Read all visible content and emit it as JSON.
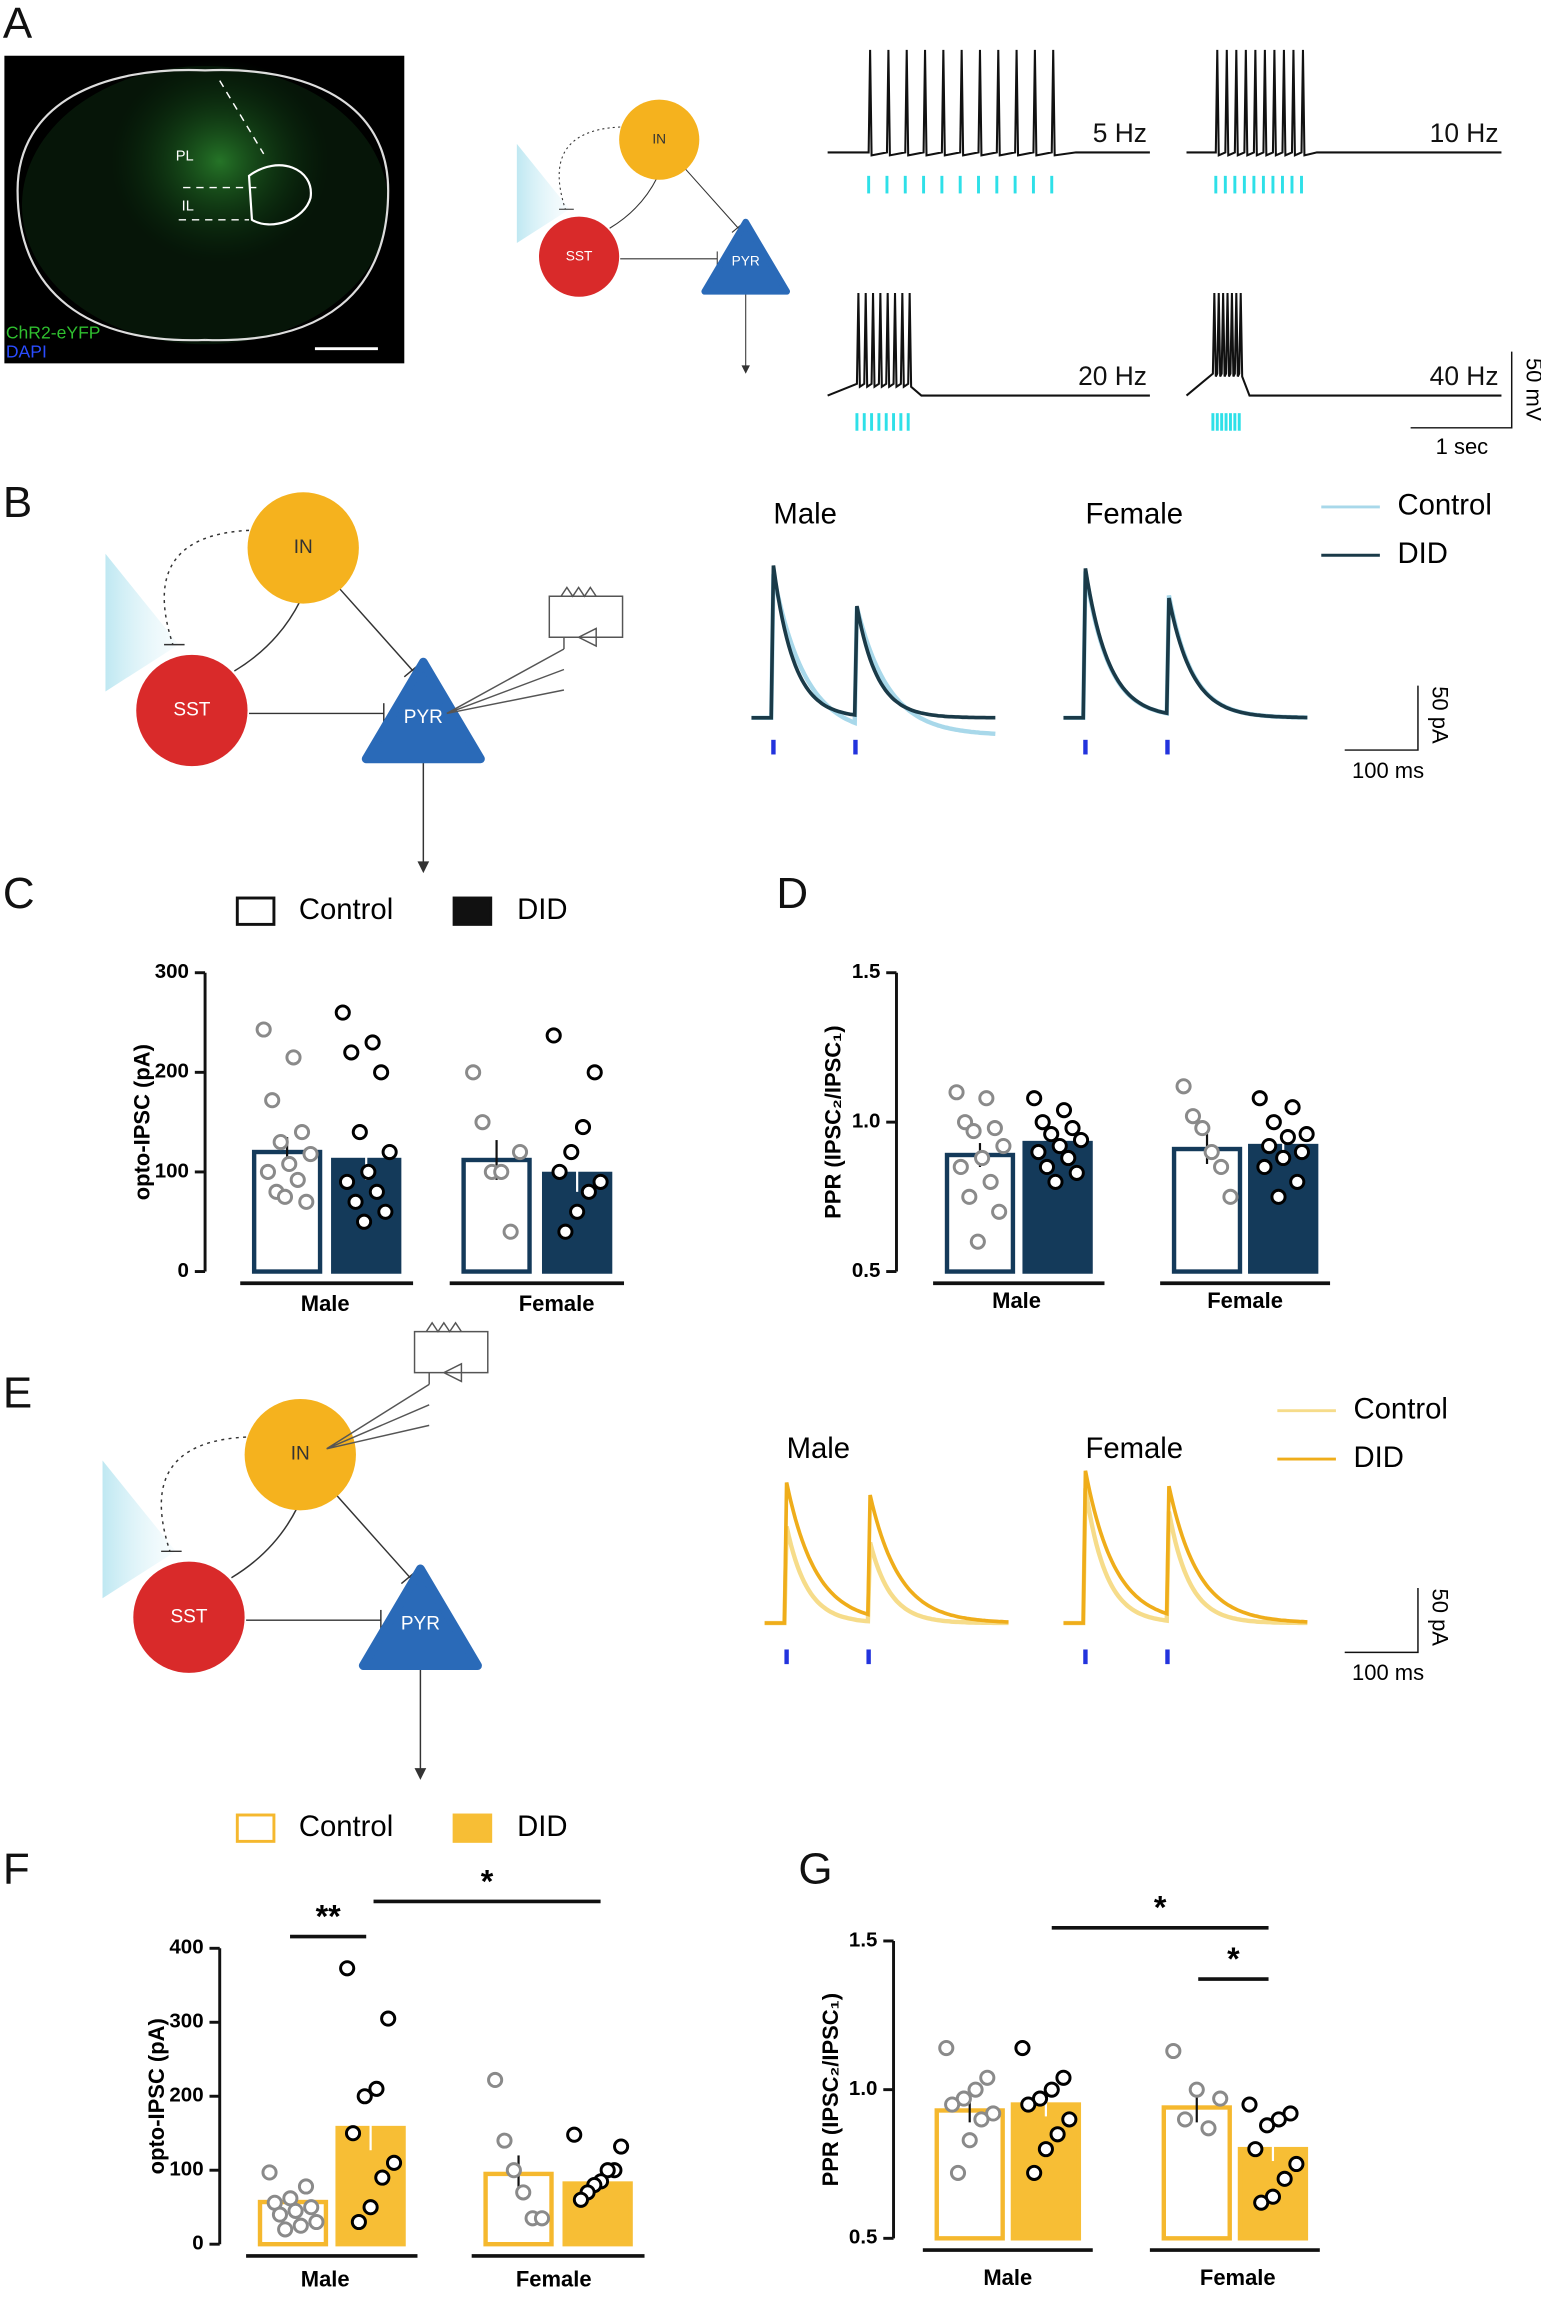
{
  "panel_labels": [
    "A",
    "B",
    "C",
    "D",
    "E",
    "F",
    "G"
  ],
  "panel_a": {
    "image_labels": [
      "PL",
      "IL"
    ],
    "stain_labels": [
      "ChR2-eYFP",
      "DAPI"
    ],
    "frequencies": [
      "5 Hz",
      "10 Hz",
      "20 Hz",
      "40 Hz"
    ],
    "scale_v": "50 mV",
    "scale_t": "1 sec"
  },
  "cells": {
    "in": "IN",
    "sst": "SST",
    "pyr": "PYR"
  },
  "traces_b": {
    "groups": [
      "Male",
      "Female"
    ],
    "legend": [
      "Control",
      "DID"
    ],
    "scale_i": "50 pA",
    "scale_t": "100 ms"
  },
  "traces_e": {
    "groups": [
      "Male",
      "Female"
    ],
    "legend": [
      "Control",
      "DID"
    ],
    "scale_i": "50 pA",
    "scale_t": "100 ms"
  },
  "chart_data": [
    {
      "type": "bar",
      "ylabel": "opto-IPSC (pA)",
      "categories": [
        "Male",
        "Female"
      ],
      "ylim": [
        0,
        300
      ],
      "yticks": [
        0,
        100,
        200,
        300
      ],
      "series": [
        {
          "name": "Control",
          "color": "#143a5a",
          "fill": "#ffffff",
          "point_color": "#8a8a8a",
          "values": [
            120,
            112
          ],
          "errors": [
            15,
            20
          ],
          "points": [
            [
              243,
              215,
              172,
              140,
              130,
              118,
              108,
              100,
              92,
              80,
              70,
              75
            ],
            [
              200,
              150,
              100,
              100,
              40,
              120
            ]
          ]
        },
        {
          "name": "DID",
          "color": "#143a5a",
          "fill": "#143a5a",
          "point_color": "#000000",
          "values": [
            112,
            98
          ],
          "errors": [
            20,
            18
          ],
          "points": [
            [
              260,
              230,
              220,
              200,
              140,
              120,
              100,
              90,
              80,
              70,
              60,
              50
            ],
            [
              237,
              200,
              145,
              120,
              100,
              90,
              80,
              60,
              40
            ]
          ]
        }
      ]
    },
    {
      "type": "bar",
      "ylabel": "PPR  (IPSC₂/IPSC₁)",
      "categories": [
        "Male",
        "Female"
      ],
      "ylim": [
        0.5,
        1.5
      ],
      "yticks": [
        0.5,
        {
          "value": 1,
          "label": "1.0"
        },
        1.5
      ],
      "series": [
        {
          "name": "Control",
          "color": "#143a5a",
          "fill": "#ffffff",
          "point_color": "#8a8a8a",
          "values": [
            0.89,
            0.91
          ],
          "errors": [
            0.04,
            0.05
          ],
          "points": [
            [
              1.1,
              1.08,
              1.0,
              0.98,
              0.97,
              0.92,
              0.88,
              0.85,
              0.8,
              0.75,
              0.7,
              0.6
            ],
            [
              1.12,
              1.02,
              0.98,
              0.9,
              0.85,
              0.75
            ]
          ]
        },
        {
          "name": "DID",
          "color": "#143a5a",
          "fill": "#143a5a",
          "point_color": "#000000",
          "values": [
            0.93,
            0.92
          ],
          "errors": [
            0.02,
            0.03
          ],
          "points": [
            [
              1.08,
              1.04,
              1.0,
              0.98,
              0.96,
              0.94,
              0.92,
              0.9,
              0.88,
              0.85,
              0.83,
              0.8
            ],
            [
              1.08,
              1.05,
              1.0,
              0.96,
              0.95,
              0.92,
              0.9,
              0.88,
              0.85,
              0.8,
              0.75
            ]
          ]
        }
      ]
    },
    {
      "type": "bar",
      "ylabel": "opto-IPSC (pA)",
      "categories": [
        "Male",
        "Female"
      ],
      "ylim": [
        0,
        400
      ],
      "yticks": [
        0,
        100,
        200,
        300,
        400
      ],
      "annotations": [
        {
          "text": "**"
        },
        {
          "text": "*"
        }
      ],
      "series": [
        {
          "name": "Control",
          "color": "#f5b82e",
          "fill": "#ffffff",
          "point_color": "#8a8a8a",
          "values": [
            57,
            95
          ],
          "errors": [
            10,
            25
          ],
          "points": [
            [
              97,
              78,
              62,
              56,
              50,
              45,
              40,
              30,
              25,
              20
            ],
            [
              222,
              140,
              100,
              70,
              35,
              35
            ]
          ]
        },
        {
          "name": "DID",
          "color": "#f7be35",
          "fill": "#f7be35",
          "point_color": "#000000",
          "values": [
            157,
            82
          ],
          "errors": [
            30,
            10
          ],
          "points": [
            [
              373,
              305,
              210,
              200,
              150,
              110,
              90,
              50,
              30
            ],
            [
              148,
              132,
              100,
              100,
              85,
              80,
              70,
              60
            ]
          ]
        }
      ]
    },
    {
      "type": "bar",
      "ylabel": "PPR  (IPSC₂/IPSC₁)",
      "categories": [
        "Male",
        "Female"
      ],
      "ylim": [
        0.5,
        1.5
      ],
      "yticks": [
        0.5,
        {
          "value": 1,
          "label": "1.0"
        },
        1.5
      ],
      "annotations": [
        {
          "text": "*"
        },
        {
          "text": "*"
        }
      ],
      "series": [
        {
          "name": "Control",
          "color": "#f5b82e",
          "fill": "#ffffff",
          "point_color": "#8a8a8a",
          "values": [
            0.93,
            0.94
          ],
          "errors": [
            0.04,
            0.05
          ],
          "points": [
            [
              1.14,
              1.04,
              1.0,
              0.97,
              0.95,
              0.92,
              0.9,
              0.83,
              0.72
            ],
            [
              1.13,
              1.0,
              0.97,
              0.9,
              0.87
            ]
          ]
        },
        {
          "name": "DID",
          "color": "#f7be35",
          "fill": "#f7be35",
          "point_color": "#000000",
          "values": [
            0.95,
            0.8
          ],
          "errors": [
            0.04,
            0.04
          ],
          "points": [
            [
              1.14,
              1.04,
              1.0,
              0.97,
              0.95,
              0.9,
              0.85,
              0.8,
              0.72
            ],
            [
              0.95,
              0.92,
              0.9,
              0.88,
              0.8,
              0.75,
              0.7,
              0.64,
              0.62
            ]
          ]
        }
      ]
    }
  ]
}
